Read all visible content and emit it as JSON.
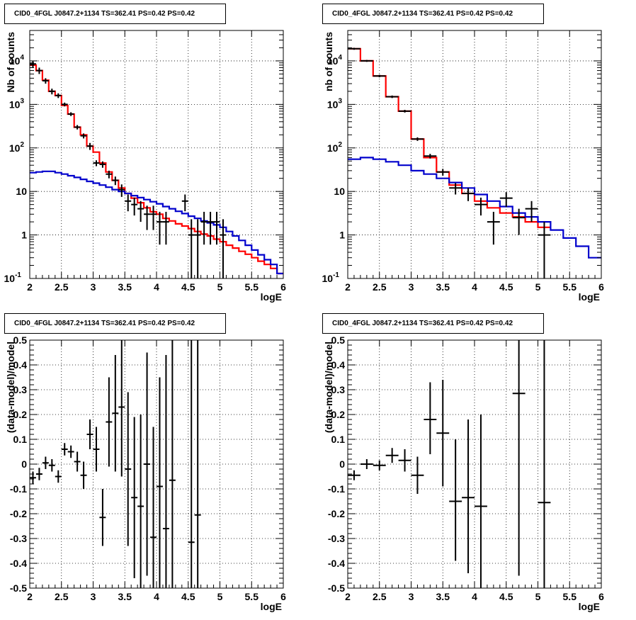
{
  "chart_data": [
    {
      "type": "line",
      "title": "CID0_4FGL J0847.2+1134 TS=362.41 PS=0.42 PS=0.42",
      "xlabel": "logE",
      "ylabel": "Nb of counts",
      "yscale": "log",
      "xlim": [
        2,
        6
      ],
      "ylim": [
        0.1,
        50000
      ],
      "xticks": [
        "2",
        "2.5",
        "3",
        "3.5",
        "4",
        "4.5",
        "5",
        "5.5",
        "6"
      ],
      "yticks": [
        {
          "v": 0.1,
          "base": "10",
          "exp": "-1"
        },
        {
          "v": 1,
          "label": "1"
        },
        {
          "v": 10,
          "label": "10"
        },
        {
          "v": 100,
          "base": "10",
          "exp": "2"
        },
        {
          "v": 1000,
          "base": "10",
          "exp": "3"
        },
        {
          "v": 10000,
          "base": "10",
          "exp": "4"
        }
      ],
      "grid": true,
      "bin_edges": [
        2.0,
        2.1,
        2.2,
        2.3,
        2.4,
        2.5,
        2.6,
        2.7,
        2.8,
        2.9,
        3.0,
        3.1,
        3.2,
        3.3,
        3.4,
        3.5,
        3.6,
        3.7,
        3.8,
        3.9,
        4.0,
        4.1,
        4.2,
        4.3,
        4.4,
        4.5,
        4.6,
        4.7,
        4.8,
        4.9,
        5.0,
        5.1,
        5.2,
        5.3,
        5.4,
        5.5,
        5.6,
        5.7,
        5.8,
        5.9,
        6.0
      ],
      "series": [
        {
          "values": [
            8000,
            6000,
            3600,
            2000,
            1600,
            950,
            600,
            300,
            200,
            110,
            80,
            45,
            28,
            18,
            12,
            9,
            7,
            5.5,
            4.2,
            3.4,
            3.0,
            2.4,
            2.1,
            1.8,
            1.6,
            1.4,
            1.2,
            1.05,
            0.95,
            0.8,
            0.7,
            0.58,
            0.5,
            0.42,
            0.36,
            0.3,
            0.25,
            0.21,
            0.17,
            0.13
          ],
          "color": "#ff0000"
        },
        {
          "values": [
            27,
            28,
            29,
            29,
            27,
            25,
            23,
            21,
            19,
            17,
            15.5,
            14,
            12.5,
            11,
            10,
            9,
            8,
            7.2,
            6.5,
            5.8,
            5.2,
            4.5,
            4.0,
            3.5,
            3.1,
            2.7,
            2.4,
            2.1,
            1.9,
            1.7,
            1.5,
            1.2,
            0.95,
            0.75,
            0.58,
            0.45,
            0.35,
            0.27,
            0.21,
            0.13
          ],
          "color": "#0000cc"
        }
      ],
      "points": [
        {
          "x": 2.05,
          "y": 8500,
          "lo": 7000,
          "hi": 10000
        },
        {
          "x": 2.15,
          "y": 6000,
          "lo": 5000,
          "hi": 7000
        },
        {
          "x": 2.25,
          "y": 3500,
          "lo": 3000,
          "hi": 4000
        },
        {
          "x": 2.35,
          "y": 2000,
          "lo": 1700,
          "hi": 2300
        },
        {
          "x": 2.45,
          "y": 1600,
          "lo": 1400,
          "hi": 1800
        },
        {
          "x": 2.55,
          "y": 1000,
          "lo": 900,
          "hi": 1100
        },
        {
          "x": 2.65,
          "y": 600,
          "lo": 540,
          "hi": 660
        },
        {
          "x": 2.75,
          "y": 300,
          "lo": 265,
          "hi": 335
        },
        {
          "x": 2.85,
          "y": 190,
          "lo": 165,
          "hi": 215
        },
        {
          "x": 2.95,
          "y": 110,
          "lo": 90,
          "hi": 130
        },
        {
          "x": 3.05,
          "y": 45,
          "lo": 38,
          "hi": 52
        },
        {
          "x": 3.15,
          "y": 42,
          "lo": 35,
          "hi": 49
        },
        {
          "x": 3.25,
          "y": 25,
          "lo": 20,
          "hi": 30
        },
        {
          "x": 3.35,
          "y": 18,
          "lo": 14,
          "hi": 22
        },
        {
          "x": 3.45,
          "y": 11,
          "lo": 7.5,
          "hi": 14.5
        },
        {
          "x": 3.55,
          "y": 6,
          "lo": 3.5,
          "hi": 8.5
        },
        {
          "x": 3.65,
          "y": 5,
          "lo": 2.8,
          "hi": 7.2
        },
        {
          "x": 3.75,
          "y": 4,
          "lo": 2,
          "hi": 6
        },
        {
          "x": 3.85,
          "y": 3,
          "lo": 1.3,
          "hi": 4.7
        },
        {
          "x": 3.95,
          "y": 3,
          "lo": 1.3,
          "hi": 4.7
        },
        {
          "x": 4.05,
          "y": 2,
          "lo": 0.6,
          "hi": 3.4
        },
        {
          "x": 4.15,
          "y": 2,
          "lo": 0.6,
          "hi": 3.4
        },
        {
          "x": 4.45,
          "y": 6,
          "lo": 3.5,
          "hi": 8.5
        },
        {
          "x": 4.55,
          "y": 1,
          "lo": 0.1,
          "hi": 2.3
        },
        {
          "x": 4.65,
          "y": 1,
          "lo": 0.1,
          "hi": 2.3
        },
        {
          "x": 4.75,
          "y": 2,
          "lo": 0.6,
          "hi": 3.4
        },
        {
          "x": 4.85,
          "y": 2,
          "lo": 0.6,
          "hi": 3.4
        },
        {
          "x": 4.95,
          "y": 2,
          "lo": 0.6,
          "hi": 3.4
        },
        {
          "x": 5.05,
          "y": 1,
          "lo": 0.1,
          "hi": 2.3
        }
      ],
      "point_halfwidth": 0.05
    },
    {
      "type": "line",
      "title": "CID0_4FGL J0847.2+1134 TS=362.41 PS=0.42 PS=0.42",
      "xlabel": "logE",
      "ylabel": "nb of counts",
      "yscale": "log",
      "xlim": [
        2,
        6
      ],
      "ylim": [
        0.1,
        50000
      ],
      "xticks": [
        "2",
        "2.5",
        "3",
        "3.5",
        "4",
        "4.5",
        "5",
        "5.5",
        "6"
      ],
      "yticks": [
        {
          "v": 0.1,
          "base": "10",
          "exp": "-1"
        },
        {
          "v": 1,
          "label": "1"
        },
        {
          "v": 10,
          "label": "10"
        },
        {
          "v": 100,
          "base": "10",
          "exp": "2"
        },
        {
          "v": 1000,
          "base": "10",
          "exp": "3"
        },
        {
          "v": 10000,
          "base": "10",
          "exp": "4"
        }
      ],
      "grid": true,
      "bin_edges": [
        2.0,
        2.2,
        2.4,
        2.6,
        2.8,
        3.0,
        3.2,
        3.4,
        3.6,
        3.8,
        4.0,
        4.2,
        4.4,
        4.6,
        4.8,
        5.0,
        5.2,
        5.4,
        5.6,
        5.8,
        6.0
      ],
      "series": [
        {
          "values": [
            19000,
            10000,
            4500,
            1500,
            700,
            160,
            60,
            28,
            14,
            9,
            6,
            4.2,
            3.2,
            2.6,
            2.0,
            1.5
          ],
          "color": "#ff0000"
        },
        {
          "values": [
            55,
            60,
            55,
            48,
            40,
            30,
            25,
            20,
            16,
            12,
            8.5,
            6,
            4.5,
            3.2,
            2.6,
            2.0,
            1.3,
            0.85,
            0.55,
            0.3
          ],
          "color": "#0000cc"
        }
      ],
      "points": [
        {
          "x": 2.1,
          "y": 19000,
          "lo": 18000,
          "hi": 20000
        },
        {
          "x": 2.3,
          "y": 10000,
          "lo": 9500,
          "hi": 10500
        },
        {
          "x": 2.5,
          "y": 4500,
          "lo": 4200,
          "hi": 4800
        },
        {
          "x": 2.7,
          "y": 1500,
          "lo": 1400,
          "hi": 1600
        },
        {
          "x": 2.9,
          "y": 700,
          "lo": 650,
          "hi": 750
        },
        {
          "x": 3.1,
          "y": 160,
          "lo": 145,
          "hi": 175
        },
        {
          "x": 3.3,
          "y": 65,
          "lo": 57,
          "hi": 73
        },
        {
          "x": 3.5,
          "y": 28,
          "lo": 23,
          "hi": 33
        },
        {
          "x": 3.7,
          "y": 12,
          "lo": 8.5,
          "hi": 15.5
        },
        {
          "x": 3.9,
          "y": 9,
          "lo": 6,
          "hi": 12
        },
        {
          "x": 4.1,
          "y": 5,
          "lo": 2.8,
          "hi": 7.2
        },
        {
          "x": 4.3,
          "y": 2,
          "lo": 0.6,
          "hi": 3.4
        },
        {
          "x": 4.5,
          "y": 7,
          "lo": 4.4,
          "hi": 9.6
        },
        {
          "x": 4.7,
          "y": 2.5,
          "lo": 1,
          "hi": 4
        },
        {
          "x": 4.9,
          "y": 4,
          "lo": 2,
          "hi": 6
        },
        {
          "x": 5.1,
          "y": 1,
          "lo": 0.1,
          "hi": 2
        }
      ],
      "point_halfwidth": 0.1
    },
    {
      "type": "scatter",
      "title": "CID0_4FGL J0847.2+1134 TS=362.41 PS=0.42 PS=0.42",
      "xlabel": "logE",
      "ylabel": "(data-model)/model",
      "yscale": "linear",
      "xlim": [
        2,
        6
      ],
      "ylim": [
        -0.5,
        0.5
      ],
      "xticks": [
        "2",
        "2.5",
        "3",
        "3.5",
        "4",
        "4.5",
        "5",
        "5.5",
        "6"
      ],
      "yticks": [
        {
          "v": -0.5,
          "label": "-0.5"
        },
        {
          "v": -0.4,
          "label": "-0.4"
        },
        {
          "v": -0.3,
          "label": "-0.3"
        },
        {
          "v": -0.2,
          "label": "-0.2"
        },
        {
          "v": -0.1,
          "label": "-0.1"
        },
        {
          "v": 0,
          "label": "0"
        },
        {
          "v": 0.1,
          "label": "0.1"
        },
        {
          "v": 0.2,
          "label": "0.2"
        },
        {
          "v": 0.3,
          "label": "0.3"
        },
        {
          "v": 0.4,
          "label": "0.4"
        },
        {
          "v": 0.5,
          "label": "0.5"
        }
      ],
      "grid": true,
      "points": [
        {
          "x": 2.05,
          "y": -0.055,
          "lo": -0.08,
          "hi": -0.03
        },
        {
          "x": 2.15,
          "y": -0.04,
          "lo": -0.065,
          "hi": -0.015
        },
        {
          "x": 2.25,
          "y": 0.005,
          "lo": -0.02,
          "hi": 0.03
        },
        {
          "x": 2.35,
          "y": -0.005,
          "lo": -0.03,
          "hi": 0.02
        },
        {
          "x": 2.45,
          "y": -0.05,
          "lo": -0.075,
          "hi": -0.025
        },
        {
          "x": 2.55,
          "y": 0.06,
          "lo": 0.035,
          "hi": 0.085
        },
        {
          "x": 2.65,
          "y": 0.05,
          "lo": 0.025,
          "hi": 0.075
        },
        {
          "x": 2.75,
          "y": 0.01,
          "lo": -0.03,
          "hi": 0.05
        },
        {
          "x": 2.85,
          "y": -0.045,
          "lo": -0.1,
          "hi": 0.01
        },
        {
          "x": 2.95,
          "y": 0.12,
          "lo": 0.06,
          "hi": 0.18
        },
        {
          "x": 3.05,
          "y": 0.06,
          "lo": -0.03,
          "hi": 0.15
        },
        {
          "x": 3.15,
          "y": -0.215,
          "lo": -0.33,
          "hi": -0.1
        },
        {
          "x": 3.25,
          "y": 0.17,
          "lo": -0.01,
          "hi": 0.35
        },
        {
          "x": 3.35,
          "y": 0.205,
          "lo": -0.03,
          "hi": 0.44
        },
        {
          "x": 3.45,
          "y": 0.23,
          "lo": -0.05,
          "hi": 0.51
        },
        {
          "x": 3.55,
          "y": -0.02,
          "lo": -0.33,
          "hi": 0.29
        },
        {
          "x": 3.65,
          "y": -0.135,
          "lo": -0.46,
          "hi": 0.19
        },
        {
          "x": 3.75,
          "y": -0.17,
          "lo": -0.51,
          "hi": 0.2
        },
        {
          "x": 3.85,
          "y": 0.0,
          "lo": -0.45,
          "hi": 0.45
        },
        {
          "x": 3.95,
          "y": -0.295,
          "lo": -0.51,
          "hi": 0.15
        },
        {
          "x": 4.05,
          "y": -0.09,
          "lo": -0.51,
          "hi": 0.35
        },
        {
          "x": 4.15,
          "y": -0.26,
          "lo": -0.51,
          "hi": 0.44
        },
        {
          "x": 4.25,
          "y": -0.065,
          "lo": -0.51,
          "hi": 0.51
        },
        {
          "x": 4.55,
          "y": -0.315,
          "lo": -0.51,
          "hi": 0.51
        },
        {
          "x": 4.65,
          "y": -0.205,
          "lo": -0.51,
          "hi": 0.51
        }
      ],
      "point_halfwidth": 0.05
    },
    {
      "type": "scatter",
      "title": "CID0_4FGL J0847.2+1134 TS=362.41 PS=0.42 PS=0.42",
      "xlabel": "logE",
      "ylabel": "(data-model)/model",
      "yscale": "linear",
      "xlim": [
        2,
        6
      ],
      "ylim": [
        -0.5,
        0.5
      ],
      "xticks": [
        "2",
        "2.5",
        "3",
        "3.5",
        "4",
        "4.5",
        "5",
        "5.5",
        "6"
      ],
      "yticks": [
        {
          "v": -0.5,
          "label": "-0.5"
        },
        {
          "v": -0.4,
          "label": "-0.4"
        },
        {
          "v": -0.3,
          "label": "-0.3"
        },
        {
          "v": -0.2,
          "label": "-0.2"
        },
        {
          "v": -0.1,
          "label": "-0.1"
        },
        {
          "v": 0,
          "label": "0"
        },
        {
          "v": 0.1,
          "label": "0.1"
        },
        {
          "v": 0.2,
          "label": "0.2"
        },
        {
          "v": 0.3,
          "label": "0.3"
        },
        {
          "v": 0.4,
          "label": "0.4"
        },
        {
          "v": 0.5,
          "label": "0.5"
        }
      ],
      "grid": true,
      "points": [
        {
          "x": 2.1,
          "y": -0.045,
          "lo": -0.065,
          "hi": -0.025
        },
        {
          "x": 2.3,
          "y": 0.0,
          "lo": -0.02,
          "hi": 0.02
        },
        {
          "x": 2.5,
          "y": -0.005,
          "lo": -0.025,
          "hi": 0.015
        },
        {
          "x": 2.7,
          "y": 0.035,
          "lo": 0.005,
          "hi": 0.065
        },
        {
          "x": 2.9,
          "y": 0.015,
          "lo": -0.03,
          "hi": 0.06
        },
        {
          "x": 3.1,
          "y": -0.045,
          "lo": -0.12,
          "hi": 0.03
        },
        {
          "x": 3.3,
          "y": 0.18,
          "lo": 0.04,
          "hi": 0.33
        },
        {
          "x": 3.5,
          "y": 0.125,
          "lo": -0.09,
          "hi": 0.34
        },
        {
          "x": 3.7,
          "y": -0.15,
          "lo": -0.39,
          "hi": 0.1
        },
        {
          "x": 3.9,
          "y": -0.135,
          "lo": -0.44,
          "hi": 0.18
        },
        {
          "x": 4.1,
          "y": -0.17,
          "lo": -0.51,
          "hi": 0.2
        },
        {
          "x": 4.7,
          "y": 0.285,
          "lo": -0.45,
          "hi": 0.51
        },
        {
          "x": 5.1,
          "y": -0.155,
          "lo": -0.51,
          "hi": 0.51
        }
      ],
      "point_halfwidth": 0.1
    }
  ]
}
